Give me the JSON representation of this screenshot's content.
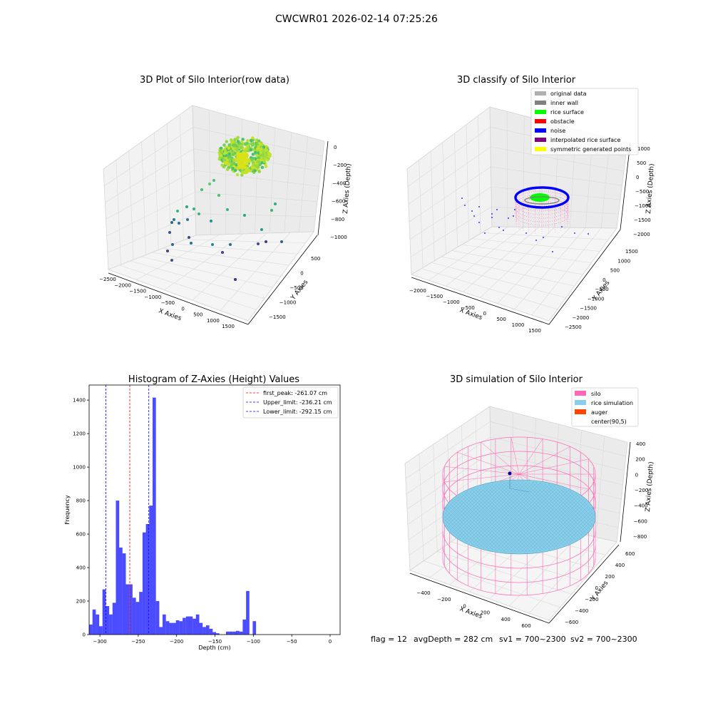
{
  "suptitle": "CWCWR01 2026-02-14 07:25:26",
  "footer": {
    "flag": "flag = 12",
    "avg_depth": "avgDepth = 282 cm",
    "sv1": "sv1 = 700~2300",
    "sv2": "sv2 = 700~2300"
  },
  "colors": {
    "hist_bar": "#0000ff",
    "first_peak": "#ff0000",
    "limits": "#0000ff",
    "silo": "#ff69b4",
    "rice": "#87ceeb",
    "auger": "#ff4500",
    "original": "#b0b0b0",
    "inner_wall": "#808080",
    "rice_surface": "#00ff00",
    "obstacle": "#ff0000",
    "noise": "#0000ff",
    "interp": "#800080",
    "symmetric": "#ffff00"
  },
  "chart_data": [
    {
      "type": "scatter",
      "title": "3D Plot of Silo Interior(row data)",
      "xlabel": "X Axies",
      "ylabel": "Y Axies",
      "zlabel": "Z Axies (Depth)",
      "x_ticks": [
        "−2500",
        "−2000",
        "−1500",
        "−1000",
        "−500",
        "0",
        "500",
        "1000",
        "1500"
      ],
      "y_ticks": [
        "500",
        "0",
        "−500",
        "−1000",
        "−1500"
      ],
      "z_ticks": [
        "0",
        "−200",
        "−400",
        "−600",
        "−800",
        "−1000"
      ],
      "xlim": [
        -2500,
        1500
      ],
      "ylim": [
        -1500,
        500
      ],
      "zlim": [
        -1000,
        0
      ],
      "colormap": "viridis"
    },
    {
      "type": "scatter",
      "title": "3D classify of Silo Interior",
      "xlabel": "X Axies",
      "ylabel": "Y Axies",
      "zlabel": "Z Axies (Depth)",
      "x_ticks": [
        "−2000",
        "−1500",
        "−1000",
        "−500",
        "0",
        "500",
        "1000",
        "1500"
      ],
      "y_ticks": [
        "1500",
        "1000",
        "500",
        "0",
        "−500",
        "−1000",
        "−1500",
        "−2000",
        "−2500"
      ],
      "z_ticks": [
        "1000",
        "500",
        "0",
        "−500",
        "−1000",
        "−1500",
        "−2000"
      ],
      "xlim": [
        -2000,
        1500
      ],
      "ylim": [
        -2500,
        1500
      ],
      "zlim": [
        -2000,
        1000
      ],
      "legend": [
        "original data",
        "inner wall",
        "rice surface",
        "obstacle",
        "noise",
        "interpolated rice surface",
        "symmetric generated points"
      ],
      "legend_placement": "top-right"
    },
    {
      "type": "bar",
      "title": "Histogram of Z-Axies (Height) Values",
      "xlabel": "Depth (cm)",
      "ylabel": "Frequency",
      "xlim": [
        -314,
        13
      ],
      "ylim": [
        0,
        1490
      ],
      "x_ticks": [
        -300,
        -250,
        -200,
        -150,
        -100,
        -50,
        0
      ],
      "y_ticks": [
        0,
        200,
        400,
        600,
        800,
        1000,
        1200,
        1400
      ],
      "bin_start": -314,
      "bin_width": 4.35,
      "values": [
        60,
        150,
        120,
        50,
        270,
        170,
        120,
        190,
        800,
        520,
        485,
        300,
        300,
        220,
        195,
        255,
        610,
        660,
        770,
        1415,
        200,
        45,
        120,
        80,
        70,
        70,
        85,
        80,
        100,
        108,
        108,
        95,
        120,
        70,
        45,
        55,
        35,
        15,
        8,
        0,
        0,
        18,
        18,
        18,
        22,
        18,
        90,
        260,
        0,
        80
      ],
      "vlines": [
        {
          "label": "first_peak: -261.07 cm",
          "x": -261.07,
          "color": "red"
        },
        {
          "label": "Upper_limit: -236.21 cm",
          "x": -236.21,
          "color": "blue"
        },
        {
          "label": "Lower_limit: -292.15 cm",
          "x": -292.15,
          "color": "blue"
        }
      ],
      "legend_placement": "top-right"
    },
    {
      "type": "scatter",
      "title": "3D simulation of Silo Interior",
      "xlabel": "X Axies",
      "ylabel": "Y Axies",
      "zlabel": "Z Axies (Depth)",
      "x_ticks": [
        "−400",
        "−200",
        "0",
        "200",
        "400",
        "600"
      ],
      "y_ticks": [
        "600",
        "400",
        "200",
        "0",
        "−200",
        "−400",
        "−600"
      ],
      "z_ticks": [
        "400",
        "200",
        "0",
        "−200",
        "−400",
        "−600",
        "−800"
      ],
      "xlim": [
        -500,
        700
      ],
      "ylim": [
        -600,
        600
      ],
      "zlim": [
        -900,
        500
      ],
      "legend": [
        "silo",
        "rice simulation",
        "auger",
        "center(90,5)"
      ],
      "legend_placement": "top-right"
    }
  ]
}
